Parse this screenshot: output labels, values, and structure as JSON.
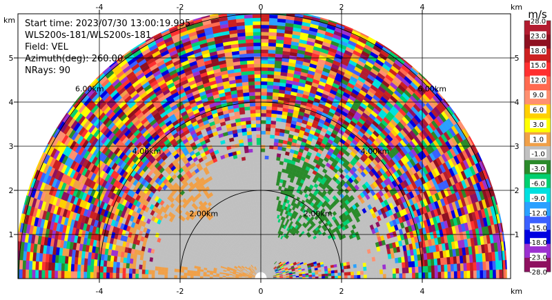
{
  "chart_data": {
    "type": "heatmap",
    "subtype": "radar-ppi-sector",
    "info_lines": [
      "Start time: 2023/07/30 13:00:19.995",
      "WLS200s-181/WLS200s-181",
      "Field: VEL",
      "Azimuth(deg): 260.00",
      "NRays: 90"
    ],
    "axis_unit": "km",
    "x_ticks": [
      -4,
      -2,
      0,
      2,
      4
    ],
    "y_ticks": [
      1,
      2,
      3,
      4,
      5
    ],
    "xlim": [
      -6,
      6
    ],
    "ylim": [
      0,
      5.9
    ],
    "range_rings_km": [
      2,
      4,
      6
    ],
    "range_ring_labels": [
      "2.00km",
      "4.00km",
      "6.00km"
    ],
    "max_range_km": 6.1,
    "colorbar": {
      "unit": "m/s",
      "tick_labels": [
        "28.0",
        "23.0",
        "18.0",
        "15.0",
        "12.0",
        "9.0",
        "6.0",
        "3.0",
        "1.0",
        "-1.0",
        "-3.0",
        "-6.0",
        "-9.0",
        "-12.0",
        "-15.0",
        "-18.0",
        "-23.0",
        "-28.0"
      ],
      "colors": [
        "#b21c30",
        "#8e1020",
        "#cc2020",
        "#ff3030",
        "#ff6a50",
        "#ff9070",
        "#ffd000",
        "#ffff00",
        "#f0a048",
        "#c0c0c0",
        "#2a8a2a",
        "#00d070",
        "#00e0e0",
        "#2aa0ff",
        "#3a60ff",
        "#0000e0",
        "#9b30d0",
        "#8e1060"
      ]
    },
    "regions": [
      {
        "description": "mostly zero velocity near field",
        "colors": [
          "#c0c0c0",
          "#f0a048"
        ]
      },
      {
        "description": "negative velocity patch",
        "colors": [
          "#2a8a2a",
          "#00d070"
        ]
      },
      {
        "description": "noisy far range",
        "colors": [
          "mixed"
        ]
      }
    ]
  }
}
